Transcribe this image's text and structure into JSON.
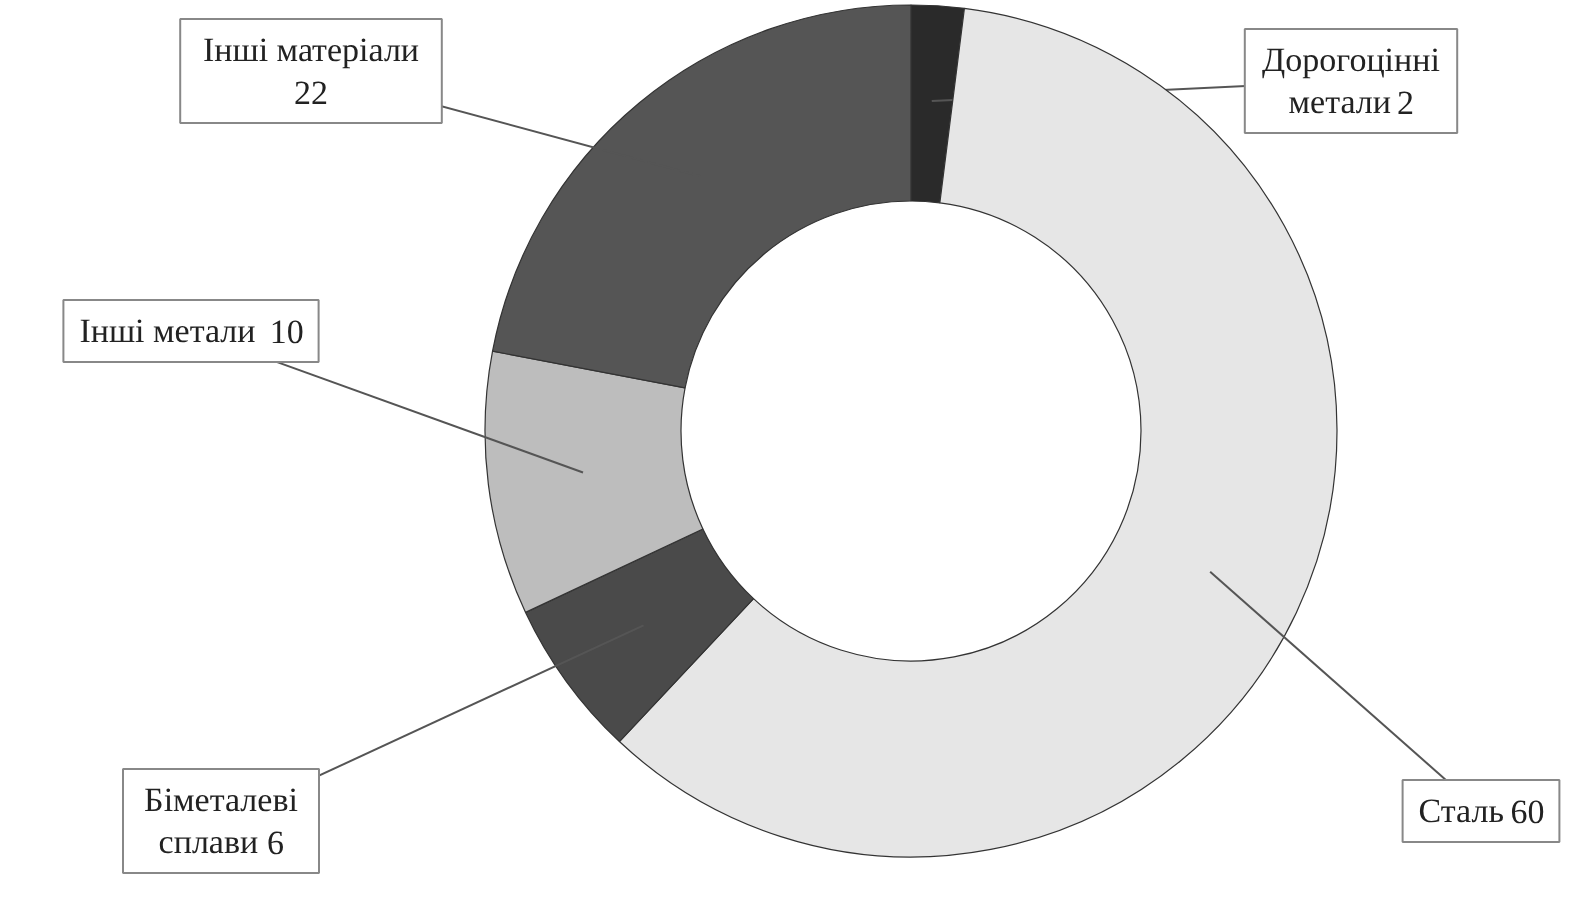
{
  "chart_data": {
    "type": "donut",
    "categories": [
      "Дорогоцінні\nметали",
      "Сталь",
      "Біметалеві\nсплави",
      "Інші метали",
      "Інші матеріали"
    ],
    "values": [
      2,
      60,
      6,
      10,
      22
    ],
    "colors": [
      "#2a2a2a",
      "#e6e6e6",
      "#4a4a4a",
      "#bdbdbd",
      "#555555"
    ],
    "data_labels": true
  }
}
